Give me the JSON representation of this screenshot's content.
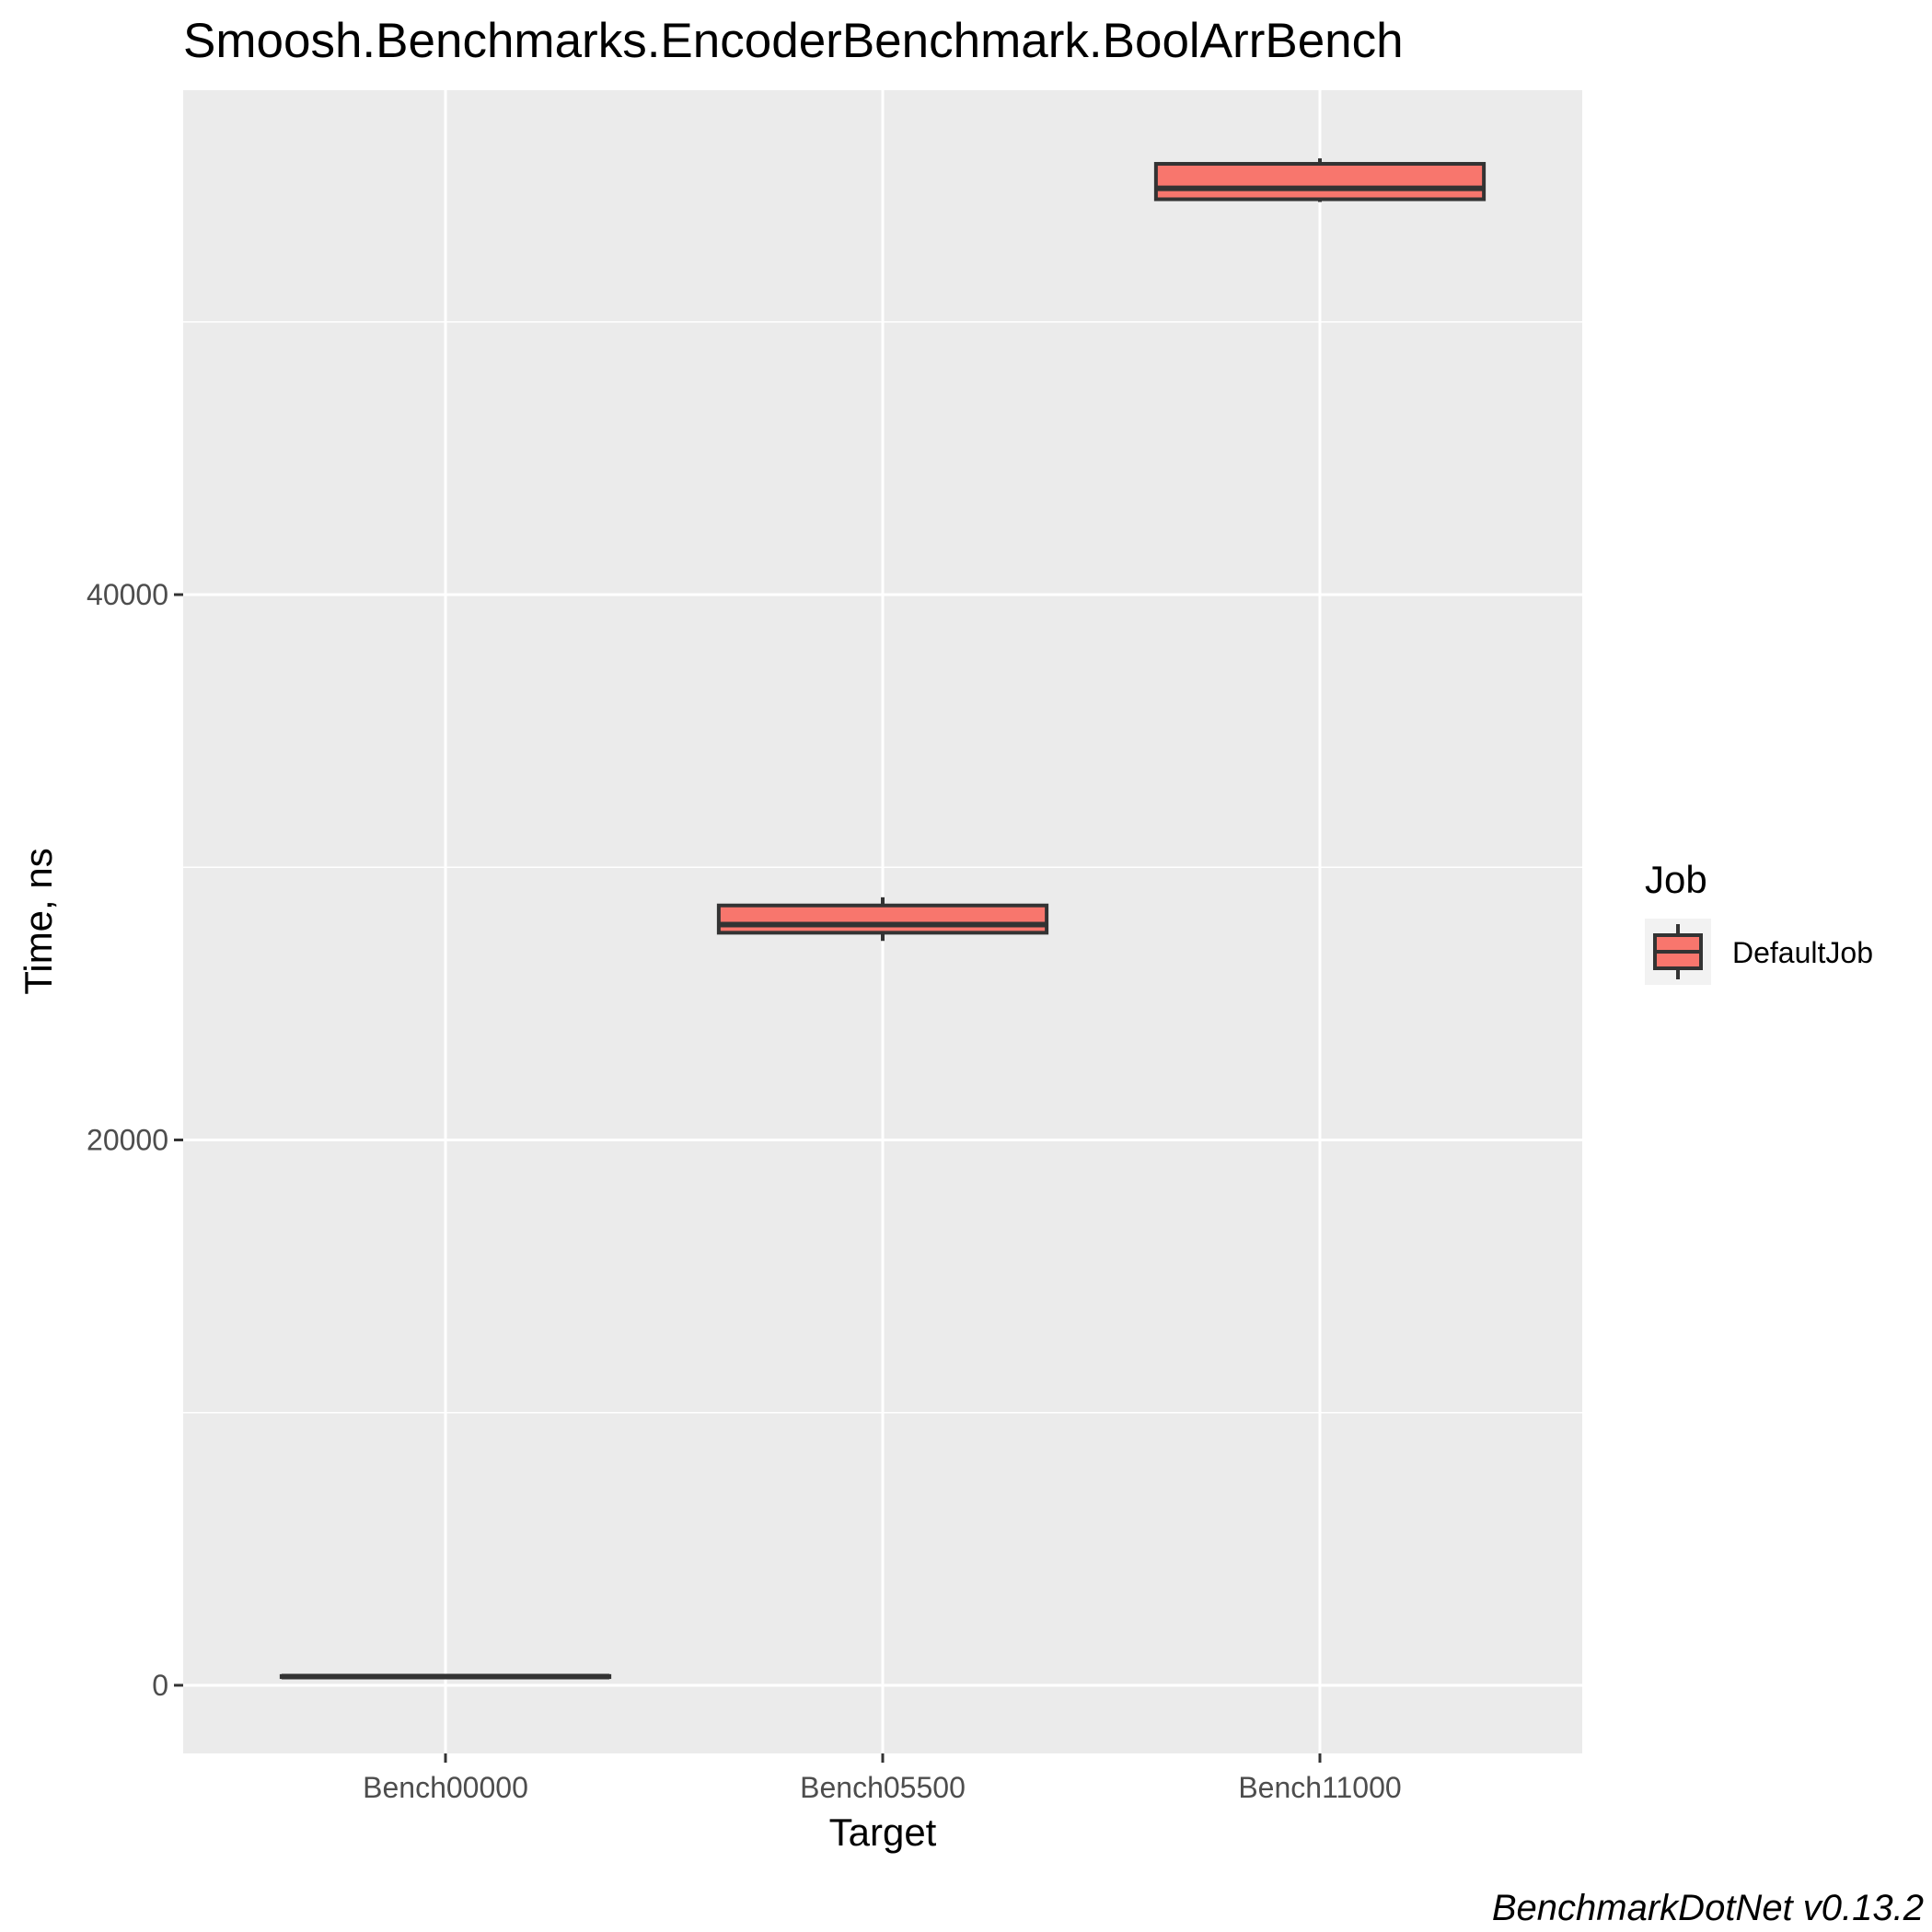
{
  "chart_data": {
    "type": "box",
    "title": "Smoosh.Benchmarks.EncoderBenchmark.BoolArrBench",
    "xlabel": "Target",
    "ylabel": "Time, ns",
    "categories": [
      "Bench00000",
      "Bench05500",
      "Bench11000"
    ],
    "y_ticks": [
      0,
      20000,
      40000
    ],
    "y_tick_labels": [
      "0",
      "20000",
      "40000"
    ],
    "ylim": [
      -2500,
      58500
    ],
    "grid": true,
    "legend": {
      "title": "Job",
      "placement": "right",
      "entries": [
        {
          "label": "DefaultJob",
          "color": "#F8766D"
        }
      ]
    },
    "series": [
      {
        "name": "DefaultJob",
        "color": "#F8766D",
        "boxes": [
          {
            "category": "Bench00000",
            "min": 260,
            "q1": 300,
            "median": 320,
            "q3": 340,
            "max": 380
          },
          {
            "category": "Bench05500",
            "min": 27300,
            "q1": 27600,
            "median": 27900,
            "q3": 28600,
            "max": 28900
          },
          {
            "category": "Bench11000",
            "min": 54400,
            "q1": 54500,
            "median": 54900,
            "q3": 55800,
            "max": 56000
          }
        ]
      }
    ],
    "caption": "BenchmarkDotNet v0.13.2"
  }
}
